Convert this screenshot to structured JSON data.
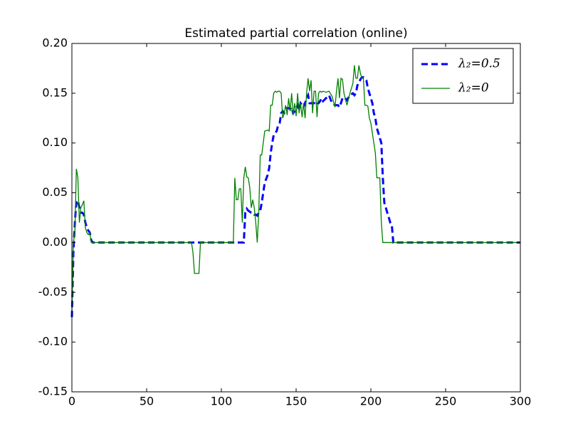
{
  "chart_data": {
    "type": "line",
    "title": "Estimated partial correlation (online)",
    "x": [
      0,
      1,
      2,
      3,
      4,
      5,
      6,
      7,
      8,
      9,
      10,
      11,
      12,
      13,
      14,
      80,
      81,
      82,
      85,
      86,
      108,
      109,
      110,
      111,
      112,
      113,
      114,
      115,
      116,
      117,
      118,
      119,
      120,
      121,
      122,
      123,
      124,
      125,
      126,
      127,
      128,
      129,
      131,
      132,
      133,
      134,
      135,
      136,
      137,
      138,
      139,
      140,
      141,
      142,
      143,
      144,
      145,
      146,
      147,
      148,
      149,
      150,
      151,
      152,
      153,
      154,
      155,
      156,
      157,
      158,
      159,
      160,
      161,
      162,
      163,
      164,
      165,
      166,
      167,
      168,
      170,
      172,
      174,
      176,
      177,
      178,
      179,
      180,
      181,
      182,
      184,
      186,
      188,
      189,
      190,
      191,
      192,
      193,
      194,
      195,
      196,
      197,
      198,
      199,
      200,
      201,
      202,
      203,
      204,
      205,
      206,
      207,
      208,
      209,
      210,
      211,
      212,
      213,
      214,
      215,
      300
    ],
    "series": [
      {
        "name": "λ₂=0.5",
        "color": "#0000ff",
        "dash": true,
        "values": [
          -0.075,
          -0.01,
          0.02,
          0.042,
          0.042,
          0.035,
          0.03,
          0.03,
          0.028,
          0.02,
          0.015,
          0.012,
          0.01,
          0.002,
          0,
          0,
          0,
          0,
          0,
          0,
          0,
          0,
          0,
          0,
          0,
          0,
          0,
          0,
          0.03,
          0.034,
          0.032,
          0.031,
          0.03,
          0.03,
          0.028,
          0.028,
          0.027,
          0.03,
          0.032,
          0.04,
          0.05,
          0.06,
          0.068,
          0.075,
          0.09,
          0.1,
          0.108,
          0.11,
          0.112,
          0.118,
          0.12,
          0.13,
          0.132,
          0.13,
          0.132,
          0.135,
          0.135,
          0.134,
          0.136,
          0.13,
          0.132,
          0.135,
          0.138,
          0.133,
          0.14,
          0.138,
          0.136,
          0.14,
          0.145,
          0.148,
          0.14,
          0.14,
          0.14,
          0.14,
          0.142,
          0.14,
          0.14,
          0.142,
          0.145,
          0.142,
          0.145,
          0.148,
          0.14,
          0.138,
          0.138,
          0.138,
          0.136,
          0.14,
          0.145,
          0.146,
          0.143,
          0.148,
          0.15,
          0.148,
          0.15,
          0.158,
          0.16,
          0.164,
          0.166,
          0.166,
          0.165,
          0.163,
          0.155,
          0.15,
          0.145,
          0.14,
          0.13,
          0.125,
          0.115,
          0.11,
          0.105,
          0.1,
          0.065,
          0.04,
          0.035,
          0.03,
          0.025,
          0.02,
          0.018,
          0.0,
          0
        ]
      },
      {
        "name": "λ₂=0",
        "color": "#008000",
        "dash": false,
        "values": [
          -0.07,
          0,
          0.01,
          0.074,
          0.065,
          0.02,
          0.035,
          0.038,
          0.042,
          0.015,
          0.01,
          0.008,
          0.01,
          0,
          0,
          0,
          -0.01,
          -0.031,
          -0.031,
          0,
          0,
          0.065,
          0.043,
          0.043,
          0.054,
          0.054,
          0.02,
          0.065,
          0.076,
          0.066,
          0.065,
          0.055,
          0.035,
          0.043,
          0.035,
          0.02,
          0,
          0.03,
          0.088,
          0.088,
          0.1,
          0.112,
          0.113,
          0.112,
          0.138,
          0.138,
          0.15,
          0.152,
          0.151,
          0.152,
          0.152,
          0.15,
          0.125,
          0.13,
          0.138,
          0.128,
          0.145,
          0.132,
          0.15,
          0.128,
          0.14,
          0.127,
          0.15,
          0.13,
          0.14,
          0.126,
          0.14,
          0.125,
          0.15,
          0.165,
          0.152,
          0.163,
          0.13,
          0.152,
          0.152,
          0.126,
          0.15,
          0.152,
          0.151,
          0.152,
          0.151,
          0.152,
          0.147,
          0.136,
          0.152,
          0.165,
          0.145,
          0.165,
          0.164,
          0.15,
          0.138,
          0.15,
          0.16,
          0.178,
          0.165,
          0.165,
          0.178,
          0.17,
          0.165,
          0.165,
          0.138,
          0.138,
          0.137,
          0.125,
          0.12,
          0.11,
          0.1,
          0.09,
          0.065,
          0.065,
          0.065,
          0.02,
          0,
          0,
          0,
          0,
          0,
          0,
          0,
          0,
          0
        ]
      }
    ],
    "xlim": [
      0,
      300
    ],
    "xticks": [
      0,
      50,
      100,
      150,
      200,
      250,
      300
    ],
    "ylim": [
      -0.15,
      0.2
    ],
    "yticks": [
      {
        "value": -0.15,
        "label": "-0.15"
      },
      {
        "value": -0.1,
        "label": "-0.10"
      },
      {
        "value": -0.05,
        "label": "-0.05"
      },
      {
        "value": 0,
        "label": "0.00"
      },
      {
        "value": 0.05,
        "label": "0.05"
      },
      {
        "value": 0.1,
        "label": "0.10"
      },
      {
        "value": 0.15,
        "label": "0.15"
      },
      {
        "value": 0.2,
        "label": "0.20"
      }
    ],
    "legend": "upper right"
  }
}
